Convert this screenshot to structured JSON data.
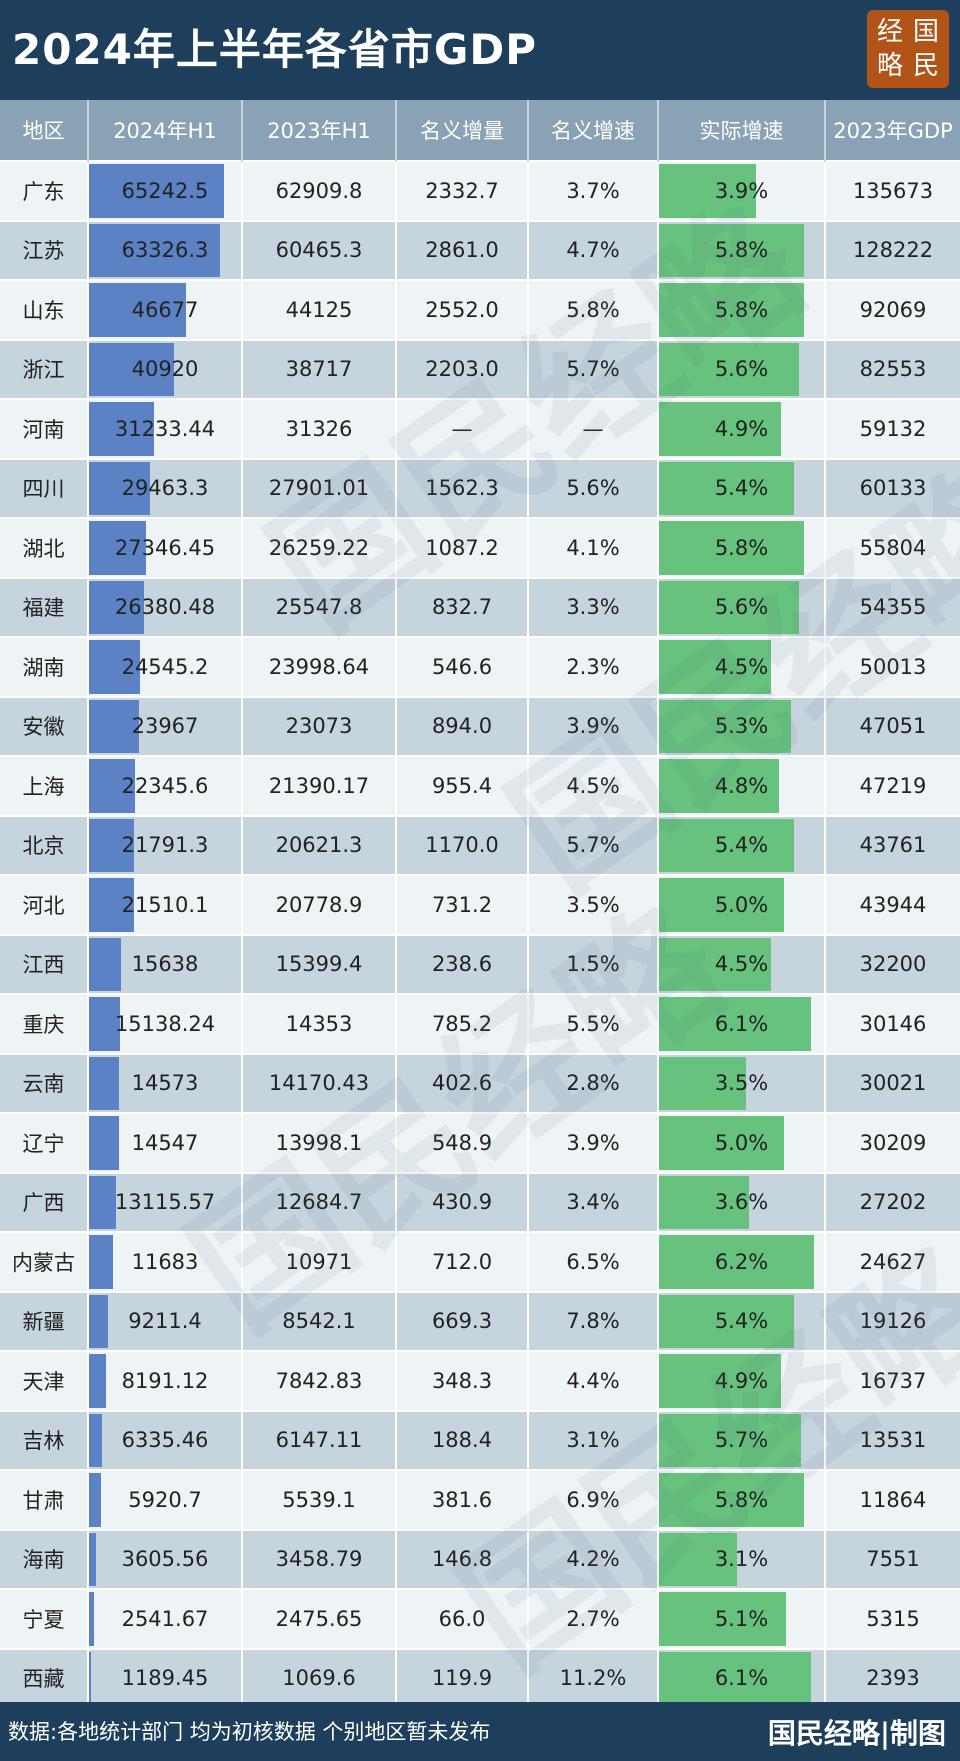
{
  "header": {
    "title": "2024年上半年各省市GDP",
    "logo_chars": [
      "经",
      "国",
      "略",
      "民"
    ]
  },
  "footer": {
    "note": "数据:各地统计部门 均为初核数据 个别地区暂未发布",
    "brand": "国民经略|制图"
  },
  "watermark_text": "国民经略",
  "colors": {
    "header_bg": "#1d3f5c",
    "bar_blue": "#5b82c5",
    "bar_green": "#66c27d",
    "logo_bg": "#b25418"
  },
  "chart_data": {
    "type": "table",
    "columns": [
      "地区",
      "2024年H1",
      "2023年H1",
      "名义增量",
      "名义增速",
      "实际增速",
      "2023年GDP"
    ],
    "bar_columns": {
      "2024年H1": "blue",
      "实际增速": "green"
    },
    "rows": [
      {
        "region": "广东",
        "h1_2024": "65242.5",
        "h1_2023": "62909.8",
        "nominal_inc": "2332.7",
        "nominal_rate": "3.7%",
        "real_rate": "3.9%",
        "gdp_2023": "135673"
      },
      {
        "region": "江苏",
        "h1_2024": "63326.3",
        "h1_2023": "60465.3",
        "nominal_inc": "2861.0",
        "nominal_rate": "4.7%",
        "real_rate": "5.8%",
        "gdp_2023": "128222"
      },
      {
        "region": "山东",
        "h1_2024": "46677",
        "h1_2023": "44125",
        "nominal_inc": "2552.0",
        "nominal_rate": "5.8%",
        "real_rate": "5.8%",
        "gdp_2023": "92069"
      },
      {
        "region": "浙江",
        "h1_2024": "40920",
        "h1_2023": "38717",
        "nominal_inc": "2203.0",
        "nominal_rate": "5.7%",
        "real_rate": "5.6%",
        "gdp_2023": "82553"
      },
      {
        "region": "河南",
        "h1_2024": "31233.44",
        "h1_2023": "31326",
        "nominal_inc": "—",
        "nominal_rate": "—",
        "real_rate": "4.9%",
        "gdp_2023": "59132"
      },
      {
        "region": "四川",
        "h1_2024": "29463.3",
        "h1_2023": "27901.01",
        "nominal_inc": "1562.3",
        "nominal_rate": "5.6%",
        "real_rate": "5.4%",
        "gdp_2023": "60133"
      },
      {
        "region": "湖北",
        "h1_2024": "27346.45",
        "h1_2023": "26259.22",
        "nominal_inc": "1087.2",
        "nominal_rate": "4.1%",
        "real_rate": "5.8%",
        "gdp_2023": "55804"
      },
      {
        "region": "福建",
        "h1_2024": "26380.48",
        "h1_2023": "25547.8",
        "nominal_inc": "832.7",
        "nominal_rate": "3.3%",
        "real_rate": "5.6%",
        "gdp_2023": "54355"
      },
      {
        "region": "湖南",
        "h1_2024": "24545.2",
        "h1_2023": "23998.64",
        "nominal_inc": "546.6",
        "nominal_rate": "2.3%",
        "real_rate": "4.5%",
        "gdp_2023": "50013"
      },
      {
        "region": "安徽",
        "h1_2024": "23967",
        "h1_2023": "23073",
        "nominal_inc": "894.0",
        "nominal_rate": "3.9%",
        "real_rate": "5.3%",
        "gdp_2023": "47051"
      },
      {
        "region": "上海",
        "h1_2024": "22345.6",
        "h1_2023": "21390.17",
        "nominal_inc": "955.4",
        "nominal_rate": "4.5%",
        "real_rate": "4.8%",
        "gdp_2023": "47219"
      },
      {
        "region": "北京",
        "h1_2024": "21791.3",
        "h1_2023": "20621.3",
        "nominal_inc": "1170.0",
        "nominal_rate": "5.7%",
        "real_rate": "5.4%",
        "gdp_2023": "43761"
      },
      {
        "region": "河北",
        "h1_2024": "21510.1",
        "h1_2023": "20778.9",
        "nominal_inc": "731.2",
        "nominal_rate": "3.5%",
        "real_rate": "5.0%",
        "gdp_2023": "43944"
      },
      {
        "region": "江西",
        "h1_2024": "15638",
        "h1_2023": "15399.4",
        "nominal_inc": "238.6",
        "nominal_rate": "1.5%",
        "real_rate": "4.5%",
        "gdp_2023": "32200"
      },
      {
        "region": "重庆",
        "h1_2024": "15138.24",
        "h1_2023": "14353",
        "nominal_inc": "785.2",
        "nominal_rate": "5.5%",
        "real_rate": "6.1%",
        "gdp_2023": "30146"
      },
      {
        "region": "云南",
        "h1_2024": "14573",
        "h1_2023": "14170.43",
        "nominal_inc": "402.6",
        "nominal_rate": "2.8%",
        "real_rate": "3.5%",
        "gdp_2023": "30021"
      },
      {
        "region": "辽宁",
        "h1_2024": "14547",
        "h1_2023": "13998.1",
        "nominal_inc": "548.9",
        "nominal_rate": "3.9%",
        "real_rate": "5.0%",
        "gdp_2023": "30209"
      },
      {
        "region": "广西",
        "h1_2024": "13115.57",
        "h1_2023": "12684.7",
        "nominal_inc": "430.9",
        "nominal_rate": "3.4%",
        "real_rate": "3.6%",
        "gdp_2023": "27202"
      },
      {
        "region": "内蒙古",
        "h1_2024": "11683",
        "h1_2023": "10971",
        "nominal_inc": "712.0",
        "nominal_rate": "6.5%",
        "real_rate": "6.2%",
        "gdp_2023": "24627"
      },
      {
        "region": "新疆",
        "h1_2024": "9211.4",
        "h1_2023": "8542.1",
        "nominal_inc": "669.3",
        "nominal_rate": "7.8%",
        "real_rate": "5.4%",
        "gdp_2023": "19126"
      },
      {
        "region": "天津",
        "h1_2024": "8191.12",
        "h1_2023": "7842.83",
        "nominal_inc": "348.3",
        "nominal_rate": "4.4%",
        "real_rate": "4.9%",
        "gdp_2023": "16737"
      },
      {
        "region": "吉林",
        "h1_2024": "6335.46",
        "h1_2023": "6147.11",
        "nominal_inc": "188.4",
        "nominal_rate": "3.1%",
        "real_rate": "5.7%",
        "gdp_2023": "13531"
      },
      {
        "region": "甘肃",
        "h1_2024": "5920.7",
        "h1_2023": "5539.1",
        "nominal_inc": "381.6",
        "nominal_rate": "6.9%",
        "real_rate": "5.8%",
        "gdp_2023": "11864"
      },
      {
        "region": "海南",
        "h1_2024": "3605.56",
        "h1_2023": "3458.79",
        "nominal_inc": "146.8",
        "nominal_rate": "4.2%",
        "real_rate": "3.1%",
        "gdp_2023": "7551"
      },
      {
        "region": "宁夏",
        "h1_2024": "2541.67",
        "h1_2023": "2475.65",
        "nominal_inc": "66.0",
        "nominal_rate": "2.7%",
        "real_rate": "5.1%",
        "gdp_2023": "5315"
      },
      {
        "region": "西藏",
        "h1_2024": "1189.45",
        "h1_2023": "1069.6",
        "nominal_inc": "119.9",
        "nominal_rate": "11.2%",
        "real_rate": "6.1%",
        "gdp_2023": "2393"
      }
    ]
  }
}
